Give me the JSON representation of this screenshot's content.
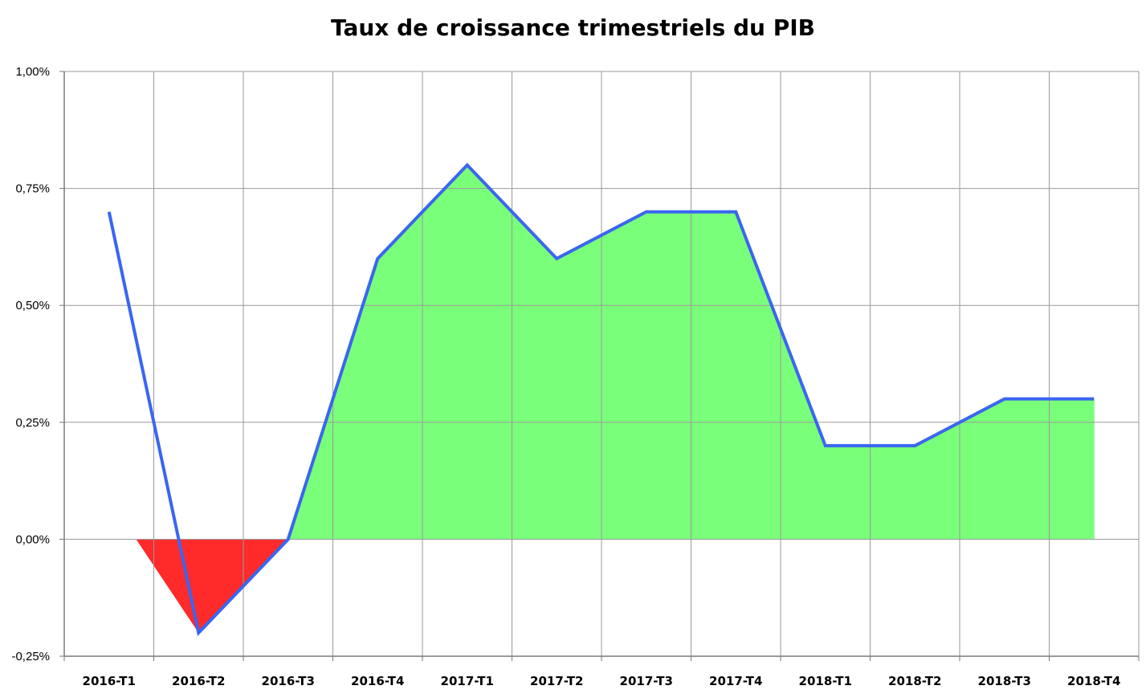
{
  "chart_data": {
    "type": "area",
    "title": "Taux de croissance trimestriels du PIB",
    "xlabel": "",
    "ylabel": "",
    "categories": [
      "2016-T1",
      "2016-T2",
      "2016-T3",
      "2016-T4",
      "2017-T1",
      "2017-T2",
      "2017-T3",
      "2017-T4",
      "2018-T1",
      "2018-T2",
      "2018-T3",
      "2018-T4"
    ],
    "values": [
      0.7,
      -0.2,
      0.0,
      0.6,
      0.8,
      0.6,
      0.7,
      0.7,
      0.2,
      0.2,
      0.3,
      0.3
    ],
    "ylim": [
      -0.25,
      1.0
    ],
    "yticks": [
      -0.25,
      0.0,
      0.25,
      0.5,
      0.75,
      1.0
    ],
    "ytick_labels": [
      "-0,25%",
      "0,00%",
      "0,25%",
      "0,50%",
      "0,75%",
      "1,00%"
    ],
    "grid": true,
    "legend": "none",
    "colors": {
      "line": "#3a66f0",
      "positive_fill": "#7aff7a",
      "negative_fill": "#ff2a2a",
      "grid": "#9a9a9a",
      "axis": "#7a7a7a"
    }
  }
}
